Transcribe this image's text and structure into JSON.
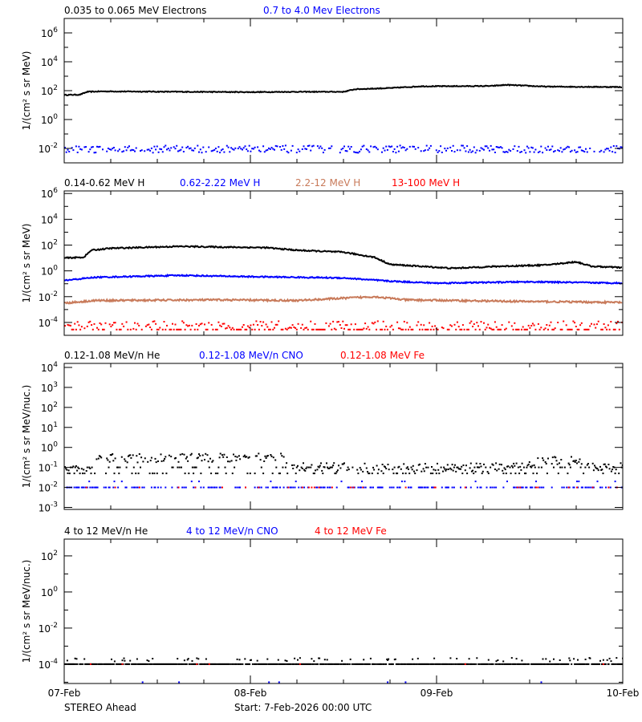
{
  "chart_data": {
    "type": "scatter",
    "x_unit": "hours since start",
    "xlim": [
      0,
      72
    ],
    "x_ticks": [
      {
        "hour": 0,
        "label": "07-Feb"
      },
      {
        "hour": 24,
        "label": "08-Feb"
      },
      {
        "hour": 48,
        "label": "09-Feb"
      },
      {
        "hour": 72,
        "label": "10-Feb"
      }
    ],
    "x_minor_tick_hours": 6,
    "footer": {
      "left": "STEREO Ahead",
      "center": "Start:  7-Feb-2026 00:00 UTC"
    },
    "panels": [
      {
        "ylabel": "1/(cm² s sr MeV)",
        "ylog10_range": [
          -3,
          7
        ],
        "ytick_exponents": [
          -2,
          0,
          2,
          4,
          6
        ],
        "yminor_every_decade": true,
        "series": [
          {
            "name": "0.035 to 0.065 MeV Electrons",
            "color": "#000000",
            "style": "line",
            "log10_profile": [
              [
                0,
                1.7
              ],
              [
                2,
                1.72
              ],
              [
                3,
                1.92
              ],
              [
                5,
                1.95
              ],
              [
                12,
                1.93
              ],
              [
                24,
                1.9
              ],
              [
                30,
                1.92
              ],
              [
                36,
                1.92
              ],
              [
                37.5,
                2.1
              ],
              [
                42,
                2.18
              ],
              [
                46,
                2.3
              ],
              [
                55,
                2.32
              ],
              [
                57,
                2.4
              ],
              [
                62,
                2.28
              ],
              [
                72,
                2.25
              ]
            ],
            "noise": 0.03
          },
          {
            "name": "0.7 to 4.0 Mev Electrons",
            "color": "#0000ff",
            "style": "dots",
            "log10_profile": [
              [
                0,
                -2.05
              ],
              [
                72,
                -2.05
              ]
            ],
            "noise": 0.25
          }
        ]
      },
      {
        "ylabel": "1/(cm² s sr MeV)",
        "ylog10_range": [
          -5,
          6.2
        ],
        "ytick_exponents": [
          -4,
          -2,
          0,
          2,
          4,
          6
        ],
        "yminor_every_decade": true,
        "series": [
          {
            "name": "0.14-0.62 MeV H",
            "color": "#000000",
            "style": "line",
            "log10_profile": [
              [
                0,
                1.0
              ],
              [
                2.5,
                1.05
              ],
              [
                3.5,
                1.6
              ],
              [
                6,
                1.75
              ],
              [
                15,
                1.9
              ],
              [
                20,
                1.85
              ],
              [
                26,
                1.8
              ],
              [
                30,
                1.6
              ],
              [
                36,
                1.45
              ],
              [
                40,
                1.05
              ],
              [
                42,
                0.5
              ],
              [
                46,
                0.35
              ],
              [
                50,
                0.2
              ],
              [
                56,
                0.35
              ],
              [
                62,
                0.45
              ],
              [
                66,
                0.7
              ],
              [
                68,
                0.35
              ],
              [
                72,
                0.25
              ]
            ],
            "noise": 0.05
          },
          {
            "name": "0.62-2.22 MeV H",
            "color": "#0000ff",
            "style": "line",
            "log10_profile": [
              [
                0,
                -0.75
              ],
              [
                4,
                -0.5
              ],
              [
                15,
                -0.35
              ],
              [
                24,
                -0.45
              ],
              [
                36,
                -0.55
              ],
              [
                42,
                -0.8
              ],
              [
                48,
                -0.95
              ],
              [
                60,
                -0.85
              ],
              [
                72,
                -0.95
              ]
            ],
            "noise": 0.05
          },
          {
            "name": "2.2-12 MeV H",
            "color": "#c87a5a",
            "style": "line",
            "log10_profile": [
              [
                0,
                -2.5
              ],
              [
                4,
                -2.3
              ],
              [
                20,
                -2.25
              ],
              [
                30,
                -2.3
              ],
              [
                40,
                -2.0
              ],
              [
                44,
                -2.25
              ],
              [
                56,
                -2.35
              ],
              [
                72,
                -2.45
              ]
            ],
            "noise": 0.07
          },
          {
            "name": "13-100 MeV H",
            "color": "#ff0000",
            "style": "dots",
            "log10_profile": [
              [
                0,
                -4.2
              ],
              [
                72,
                -4.2
              ]
            ],
            "noise": 0.3
          }
        ]
      },
      {
        "ylabel": "1/(cm² s sr MeV/nuc.)",
        "ylog10_range": [
          -3.1,
          4.2
        ],
        "ytick_exponents": [
          -3,
          -2,
          -1,
          0,
          1,
          2,
          3,
          4
        ],
        "yminor_every_decade": false,
        "series": [
          {
            "name": "0.12-1.08 MeV/n He",
            "color": "#000000",
            "style": "dots",
            "log10_profile": [
              [
                0,
                -1.1
              ],
              [
                3.5,
                -1.1
              ],
              [
                4,
                -0.55
              ],
              [
                28,
                -0.5
              ],
              [
                30,
                -1.0
              ],
              [
                58,
                -1.0
              ],
              [
                62,
                -0.6
              ],
              [
                66,
                -0.7
              ],
              [
                68,
                -1.0
              ],
              [
                72,
                -1.0
              ]
            ],
            "noise": 0.22
          },
          {
            "name": "0.12-1.08 MeV/n CNO",
            "color": "#0000ff",
            "style": "dots",
            "log10_profile": [
              [
                0,
                -2.0
              ],
              [
                72,
                -2.0
              ]
            ],
            "noise": 0.0
          },
          {
            "name": "0.12-1.08 MeV Fe",
            "color": "#ff0000",
            "style": "dots",
            "log10_profile": [
              [
                0,
                -2.0
              ],
              [
                72,
                -2.0
              ]
            ],
            "noise": 0.0
          }
        ]
      },
      {
        "ylabel": "1/(cm² s sr MeV/nuc.)",
        "ylog10_range": [
          -5.07,
          2.93
        ],
        "ytick_exponents": [
          -4,
          -2,
          0,
          2
        ],
        "yminor_every_decade": true,
        "series": [
          {
            "name": "4 to 12 MeV/n He",
            "color": "#000000",
            "style": "dots",
            "log10_profile": [
              [
                0,
                -4.0
              ],
              [
                72,
                -4.0
              ]
            ],
            "noise": 0.0
          },
          {
            "name": "4 to 12 MeV/n CNO",
            "color": "#0000ff",
            "style": "dots",
            "log10_profile": [
              [
                0,
                -5.0
              ],
              [
                72,
                -5.0
              ]
            ],
            "noise": 0.0
          },
          {
            "name": "4 to 12 MeV Fe",
            "color": "#ff0000",
            "style": "dots",
            "log10_profile": [
              [
                0,
                -4.0
              ],
              [
                72,
                -4.0
              ]
            ],
            "noise": 0.0
          }
        ]
      }
    ]
  }
}
